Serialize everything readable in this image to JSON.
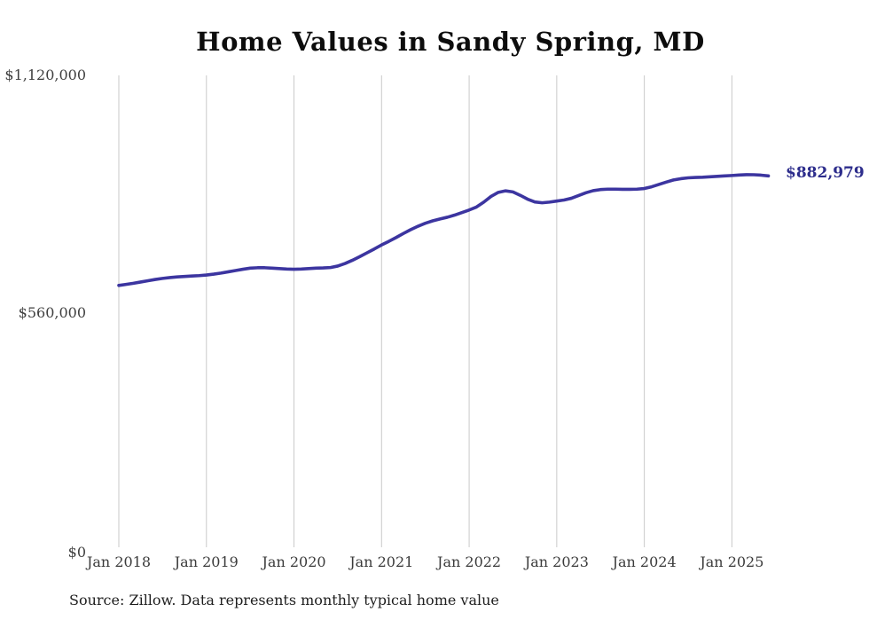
{
  "title": "Home Values in Sandy Spring, MD",
  "source_note": "Source: Zillow. Data represents monthly typical home value",
  "colors": {
    "line": "#3c35a0",
    "end_label": "#2d2d8c",
    "gridline": "#c9c9c9",
    "axis_text": "#3b3b3b",
    "title_text": "#0d0d0d",
    "background": "#ffffff"
  },
  "chart_data": {
    "type": "line",
    "title": "Home Values in Sandy Spring, MD",
    "xlabel": "",
    "ylabel": "",
    "x_start_month": "Jan 2018",
    "x_end_month": "Jun 2025",
    "x_tick_labels": [
      "Jan 2018",
      "Jan 2019",
      "Jan 2020",
      "Jan 2021",
      "Jan 2022",
      "Jan 2023",
      "Jan 2024",
      "Jan 2025"
    ],
    "y_ticks": [
      0,
      560000,
      1120000
    ],
    "y_tick_labels": [
      "$0",
      "$560,000",
      "$1,120,000"
    ],
    "ylim": [
      0,
      1120000
    ],
    "grid": "vertical-only",
    "legend": "none",
    "annotation": {
      "text": "$882,979",
      "position": "end-of-line"
    },
    "series": [
      {
        "name": "Monthly typical home value",
        "final_value": 882979,
        "values": [
          626000,
          628500,
          631000,
          634000,
          637000,
          640000,
          642500,
          644500,
          646000,
          647000,
          648000,
          649000,
          650500,
          652500,
          655000,
          658000,
          661000,
          664000,
          666500,
          667500,
          667500,
          666500,
          665500,
          664500,
          664000,
          664500,
          665500,
          666500,
          667000,
          668000,
          671500,
          677500,
          685000,
          693500,
          702500,
          711500,
          721000,
          729500,
          738500,
          748000,
          757000,
          765000,
          772000,
          777500,
          782000,
          786000,
          791000,
          797000,
          803000,
          810000,
          821500,
          835000,
          844500,
          848000,
          845500,
          837500,
          828500,
          822000,
          820000,
          821500,
          824000,
          826500,
          830500,
          837000,
          843500,
          848500,
          851000,
          852000,
          852000,
          851500,
          851500,
          852000,
          853500,
          857500,
          863000,
          868500,
          873500,
          876500,
          878500,
          879500,
          880000,
          881000,
          882000,
          883000,
          884000,
          885200,
          886000,
          885800,
          884800,
          882979
        ]
      }
    ]
  }
}
